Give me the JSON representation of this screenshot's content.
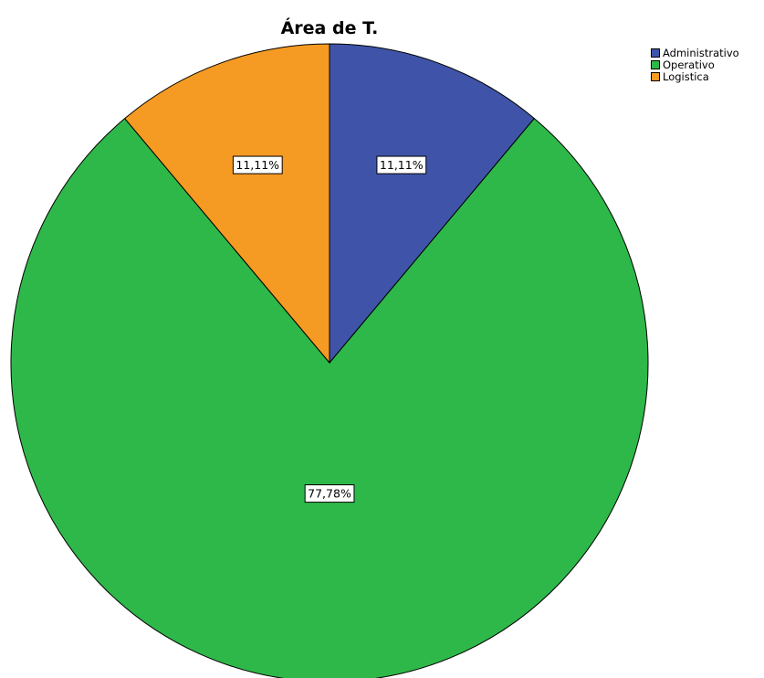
{
  "chart_data": {
    "type": "pie",
    "title": "Área de T.",
    "categories": [
      "Administrativo",
      "Operativo",
      "Logistica"
    ],
    "values": [
      11.11,
      77.78,
      11.11
    ],
    "data_labels": [
      "11,11%",
      "77,78%",
      "11,11%"
    ],
    "colors": [
      "#3f54a8",
      "#2fb84a",
      "#f59a23"
    ],
    "start_angle": "12 o'clock",
    "direction": "clockwise",
    "legend_position": "top-right"
  }
}
